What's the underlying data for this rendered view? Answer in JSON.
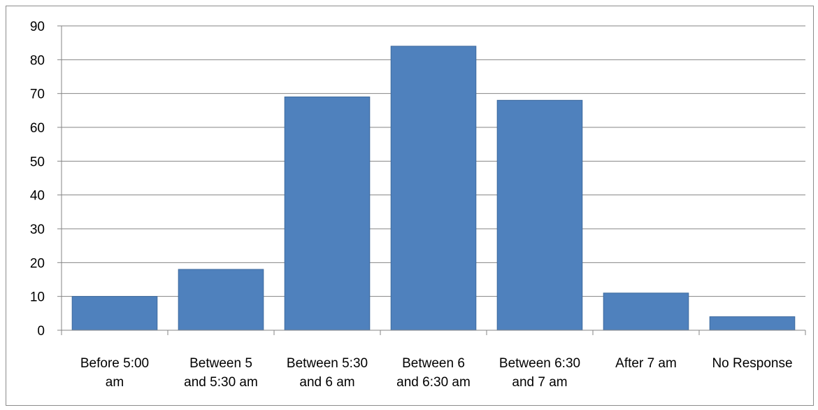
{
  "chart_data": {
    "type": "bar",
    "categories": [
      [
        "Before 5:00",
        "am"
      ],
      [
        "Between 5",
        "and 5:30 am"
      ],
      [
        "Between 5:30",
        "and 6 am"
      ],
      [
        "Between 6",
        "and 6:30 am"
      ],
      [
        "Between 6:30",
        "and 7 am"
      ],
      [
        "After 7 am"
      ],
      [
        "No Response"
      ]
    ],
    "values": [
      10,
      18,
      69,
      84,
      68,
      11,
      4
    ],
    "title": "",
    "xlabel": "",
    "ylabel": "",
    "ylim": [
      0,
      90
    ],
    "y_ticks": [
      "0",
      "10",
      "20",
      "30",
      "40",
      "50",
      "60",
      "70",
      "80",
      "90"
    ],
    "grid": true,
    "legend": "none",
    "colors": {
      "bar": "#4f81bd",
      "bar_edge": "#3d6a9e",
      "grid": "#858585",
      "axis": "#858585"
    }
  }
}
